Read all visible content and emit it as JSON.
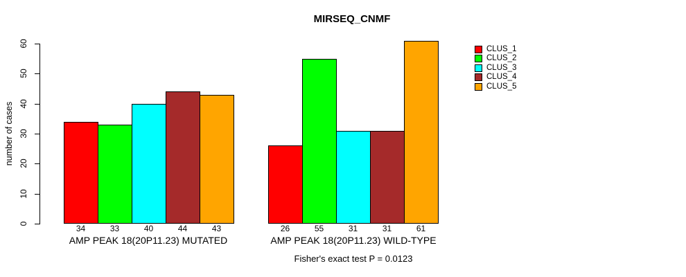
{
  "chart_data": {
    "type": "bar",
    "title": "MIRSEQ_CNMF",
    "ylabel": "number of cases",
    "xlabel": "",
    "ylim": [
      0,
      60
    ],
    "yticks": [
      0,
      10,
      20,
      30,
      40,
      50,
      60
    ],
    "grid": false,
    "legend_position": "right",
    "categories": [
      "AMP PEAK 18(20P11.23) MUTATED",
      "AMP PEAK 18(20P11.23) WILD-TYPE"
    ],
    "series": [
      {
        "name": "CLUS_1",
        "color": "#FF0000",
        "values": [
          34,
          26
        ]
      },
      {
        "name": "CLUS_2",
        "color": "#00FF00",
        "values": [
          33,
          55
        ]
      },
      {
        "name": "CLUS_3",
        "color": "#00FFFF",
        "values": [
          40,
          31
        ]
      },
      {
        "name": "CLUS_4",
        "color": "#A52A2A",
        "values": [
          44,
          31
        ]
      },
      {
        "name": "CLUS_5",
        "color": "#FFA500",
        "values": [
          43,
          61
        ]
      }
    ],
    "bar_value_labels": {
      "AMP PEAK 18(20P11.23) MUTATED": [
        34,
        33,
        40,
        44,
        43
      ],
      "AMP PEAK 18(20P11.23) WILD-TYPE": [
        26,
        55,
        31,
        31,
        61
      ]
    },
    "annotation": "Fisher's exact test P = 0.0123"
  }
}
